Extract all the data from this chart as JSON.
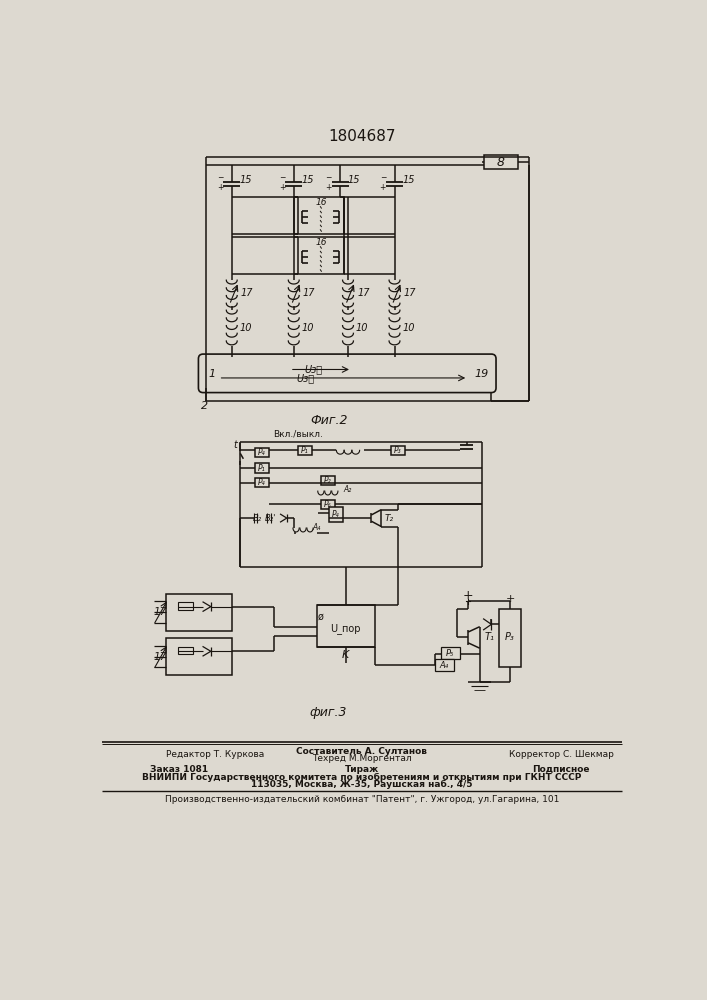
{
  "title": "1804687",
  "paper_color": "#ddd9d0",
  "line_color": "#1a1510",
  "fig2_label": "Фиг.2",
  "fig3_label": "фиг.3",
  "footer": {
    "editor": "Редактор Т. Куркова",
    "composer": "Составитель А. Султанов",
    "techred": "Техред М.Моргентал",
    "corrector": "Корректор С. Шекмар",
    "order": "Заказ 1081",
    "tirazh": "Тираж",
    "podpisnoe": "Подписное",
    "vniip1": "ВНИИПИ Государственного комитета по изобретениям и открытиям при ГКНТ СССР",
    "vniip2": "113035, Москва, Ж-35, Раушская наб., 4/5",
    "patent": "Производственно-издательский комбинат \"Патент\", г. Ужгород, ул.Гагарина, 101"
  }
}
